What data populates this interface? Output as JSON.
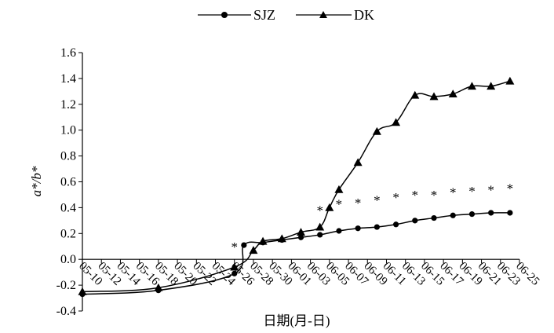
{
  "chart_data": {
    "type": "line",
    "title": "",
    "xlabel": "日期(月-日)",
    "ylabel": "a*/b*",
    "ylim": [
      -0.4,
      1.6
    ],
    "ytick_step": 0.2,
    "ytick_labels": [
      "-0.4",
      "-0.2",
      "0.0",
      "0.2",
      "0.4",
      "0.6",
      "0.8",
      "1.0",
      "1.2",
      "1.4",
      "1.6"
    ],
    "xtick_labels": [
      "05-10",
      "05-12",
      "05-14",
      "05-16",
      "05-18",
      "05-20",
      "05-22",
      "05-24",
      "05-26",
      "05-28",
      "05-30",
      "06-01",
      "06-03",
      "06-05",
      "06-07",
      "06-09",
      "06-11",
      "06-13",
      "06-15",
      "06-17",
      "06-19",
      "06-21",
      "06-23",
      "06-25"
    ],
    "legend_position": "top-center",
    "grid": false,
    "series": [
      {
        "name": "SJZ",
        "marker": "circle",
        "color": "#000000",
        "x": [
          "05-10",
          "05-18",
          "05-26",
          "05-27",
          "05-29",
          "05-31",
          "06-02",
          "06-04",
          "06-06",
          "06-08",
          "06-10",
          "06-12",
          "06-14",
          "06-16",
          "06-18",
          "06-20",
          "06-22",
          "06-24"
        ],
        "values": [
          -0.27,
          -0.24,
          -0.11,
          0.11,
          0.13,
          0.15,
          0.17,
          0.19,
          0.22,
          0.24,
          0.25,
          0.27,
          0.3,
          0.32,
          0.34,
          0.35,
          0.36,
          0.36
        ]
      },
      {
        "name": "DK",
        "marker": "triangle",
        "color": "#000000",
        "x": [
          "05-10",
          "05-18",
          "05-26",
          "05-28",
          "05-29",
          "05-31",
          "06-02",
          "06-04",
          "06-05",
          "06-06",
          "06-08",
          "06-10",
          "06-12",
          "06-14",
          "06-16",
          "06-18",
          "06-20",
          "06-22",
          "06-24"
        ],
        "values": [
          -0.25,
          -0.22,
          -0.06,
          0.07,
          0.14,
          0.16,
          0.21,
          0.25,
          0.4,
          0.54,
          0.75,
          0.99,
          1.06,
          1.27,
          1.26,
          1.28,
          1.34,
          1.34,
          1.38
        ]
      }
    ],
    "annotations": [
      {
        "text": "*",
        "x": "05-26",
        "y": 0.1
      },
      {
        "text": "*",
        "x": "06-04",
        "y": 0.38
      },
      {
        "text": "*",
        "x": "06-06",
        "y": 0.43
      },
      {
        "text": "*",
        "x": "06-08",
        "y": 0.44
      },
      {
        "text": "*",
        "x": "06-10",
        "y": 0.46
      },
      {
        "text": "*",
        "x": "06-12",
        "y": 0.48
      },
      {
        "text": "*",
        "x": "06-14",
        "y": 0.5
      },
      {
        "text": "*",
        "x": "06-16",
        "y": 0.5
      },
      {
        "text": "*",
        "x": "06-18",
        "y": 0.52
      },
      {
        "text": "*",
        "x": "06-20",
        "y": 0.53
      },
      {
        "text": "*",
        "x": "06-22",
        "y": 0.54
      },
      {
        "text": "*",
        "x": "06-24",
        "y": 0.55
      }
    ]
  }
}
